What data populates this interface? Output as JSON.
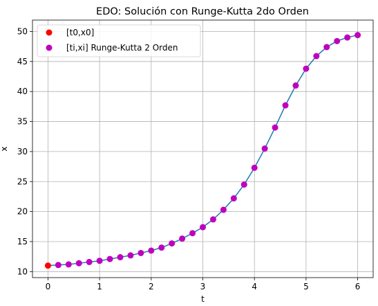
{
  "chart_data": {
    "type": "line",
    "title": "EDO: Solución con Runge-Kutta 2do Orden",
    "xlabel": "t",
    "ylabel": "x",
    "xlim": [
      -0.3,
      6.3
    ],
    "ylim": [
      9.0,
      51.9
    ],
    "xticks": [
      0,
      1,
      2,
      3,
      4,
      5,
      6
    ],
    "yticks": [
      10,
      15,
      20,
      25,
      30,
      35,
      40,
      45,
      50
    ],
    "grid": true,
    "legend_placement": "upper-left",
    "series": [
      {
        "name": "[t0,x0]",
        "style": "marker",
        "color": "#ff0000",
        "x": [
          0
        ],
        "y": [
          11.0
        ]
      },
      {
        "name": "",
        "style": "line",
        "color": "#1f77b4",
        "x": [
          0,
          0.2,
          0.4,
          0.6,
          0.8,
          1.0,
          1.2,
          1.4,
          1.6,
          1.8,
          2.0,
          2.2,
          2.4,
          2.6,
          2.8,
          3.0,
          3.2,
          3.4,
          3.6,
          3.8,
          4.0,
          4.2,
          4.4,
          4.6,
          4.8,
          5.0,
          5.2,
          5.4,
          5.6,
          5.8,
          6.0
        ],
        "y": [
          11.0,
          11.1,
          11.2,
          11.4,
          11.6,
          11.8,
          12.1,
          12.4,
          12.7,
          13.1,
          13.5,
          14.0,
          14.7,
          15.5,
          16.4,
          17.4,
          18.7,
          20.3,
          22.2,
          24.5,
          27.3,
          30.5,
          34.0,
          37.7,
          41.0,
          43.8,
          45.9,
          47.4,
          48.4,
          49.0,
          49.4
        ]
      },
      {
        "name": "[ti,xi] Runge-Kutta 2 Orden",
        "style": "marker",
        "color": "#bf00bf",
        "x": [
          0.2,
          0.4,
          0.6,
          0.8,
          1.0,
          1.2,
          1.4,
          1.6,
          1.8,
          2.0,
          2.2,
          2.4,
          2.6,
          2.8,
          3.0,
          3.2,
          3.4,
          3.6,
          3.8,
          4.0,
          4.2,
          4.4,
          4.6,
          4.8,
          5.0,
          5.2,
          5.4,
          5.6,
          5.8,
          6.0
        ],
        "y": [
          11.1,
          11.2,
          11.4,
          11.6,
          11.8,
          12.1,
          12.4,
          12.7,
          13.1,
          13.5,
          14.0,
          14.7,
          15.5,
          16.4,
          17.4,
          18.7,
          20.3,
          22.2,
          24.5,
          27.3,
          30.5,
          34.0,
          37.7,
          41.0,
          43.8,
          45.9,
          47.4,
          48.4,
          49.0,
          49.4
        ]
      }
    ],
    "legend": [
      {
        "label": "[t0,x0]",
        "color": "#ff0000"
      },
      {
        "label": "[ti,xi] Runge-Kutta 2 Orden",
        "color": "#bf00bf"
      }
    ]
  }
}
